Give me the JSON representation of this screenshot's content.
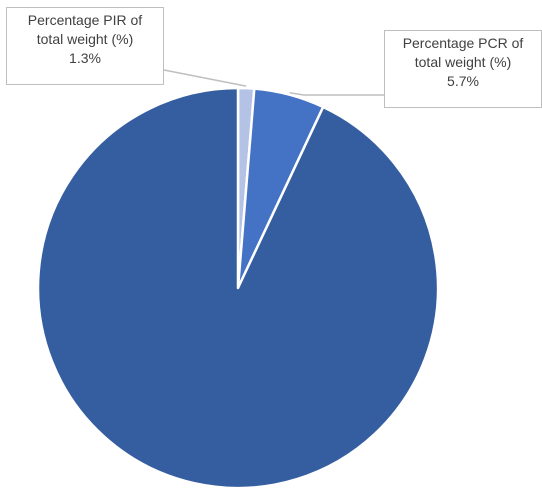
{
  "chart_data": {
    "type": "pie",
    "title": "",
    "slices": [
      {
        "label_lines": [
          "Percentage PIR of",
          "total weight (%)"
        ],
        "value": 1.3,
        "value_label": "1.3%",
        "color": "#b4c2e6"
      },
      {
        "label_lines": [
          "Percentage PCR of",
          "total weight (%)"
        ],
        "value": 5.7,
        "value_label": "5.7%",
        "color": "#4472c4"
      },
      {
        "value": 93.0,
        "color": "#355ea0"
      }
    ],
    "start_angle_deg": 0,
    "direction": "clockwise",
    "slice_border_color": "#ffffff",
    "leader_line_color": "#bfbfbf"
  }
}
